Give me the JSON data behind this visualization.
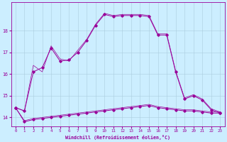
{
  "bg_color": "#cceeff",
  "line_color": "#990099",
  "xlim": [
    -0.5,
    23.5
  ],
  "ylim": [
    13.6,
    19.3
  ],
  "xticks": [
    0,
    1,
    2,
    3,
    4,
    5,
    6,
    7,
    8,
    9,
    10,
    11,
    12,
    13,
    14,
    15,
    16,
    17,
    18,
    19,
    20,
    21,
    22,
    23
  ],
  "yticks": [
    14,
    15,
    16,
    17,
    18
  ],
  "xlabel": "Windchill (Refroidissement éolien,°C)",
  "line_zigzag1_x": [
    0,
    1,
    2,
    3,
    4,
    5,
    6,
    7,
    8,
    9,
    10,
    11,
    12,
    13,
    14,
    15,
    16,
    17,
    18,
    19,
    20,
    21,
    22,
    23
  ],
  "line_zigzag1_y": [
    14.45,
    14.3,
    16.1,
    16.3,
    17.2,
    16.6,
    16.65,
    17.0,
    17.55,
    18.25,
    18.75,
    18.65,
    18.7,
    18.7,
    18.7,
    18.65,
    17.8,
    17.8,
    16.1,
    14.85,
    15.0,
    14.8,
    14.35,
    14.2
  ],
  "line_zigzag2_x": [
    0,
    1,
    2,
    3,
    4,
    5,
    6,
    7,
    8,
    9,
    10,
    11,
    12,
    13,
    14,
    15,
    16,
    17,
    18,
    19,
    20,
    21,
    22,
    23
  ],
  "line_zigzag2_y": [
    14.45,
    14.3,
    16.4,
    16.1,
    17.3,
    16.7,
    16.6,
    17.1,
    17.6,
    18.3,
    18.8,
    18.7,
    18.75,
    18.75,
    18.75,
    18.7,
    17.85,
    17.85,
    16.15,
    14.9,
    15.05,
    14.85,
    14.4,
    14.25
  ],
  "line_flat1_x": [
    0,
    1,
    2,
    3,
    4,
    5,
    6,
    7,
    8,
    9,
    10,
    11,
    12,
    13,
    14,
    15,
    16,
    17,
    18,
    19,
    20,
    21,
    22,
    23
  ],
  "line_flat1_y": [
    14.45,
    13.8,
    13.9,
    13.95,
    14.0,
    14.05,
    14.1,
    14.15,
    14.2,
    14.25,
    14.3,
    14.35,
    14.4,
    14.45,
    14.5,
    14.55,
    14.45,
    14.4,
    14.35,
    14.3,
    14.3,
    14.25,
    14.2,
    14.2
  ],
  "line_flat2_x": [
    0,
    1,
    2,
    3,
    4,
    5,
    6,
    7,
    8,
    9,
    10,
    11,
    12,
    13,
    14,
    15,
    16,
    17,
    18,
    19,
    20,
    21,
    22,
    23
  ],
  "line_flat2_y": [
    14.45,
    13.85,
    13.95,
    14.0,
    14.05,
    14.1,
    14.15,
    14.2,
    14.25,
    14.3,
    14.35,
    14.4,
    14.45,
    14.5,
    14.55,
    14.6,
    14.5,
    14.45,
    14.4,
    14.35,
    14.35,
    14.3,
    14.25,
    14.25
  ]
}
